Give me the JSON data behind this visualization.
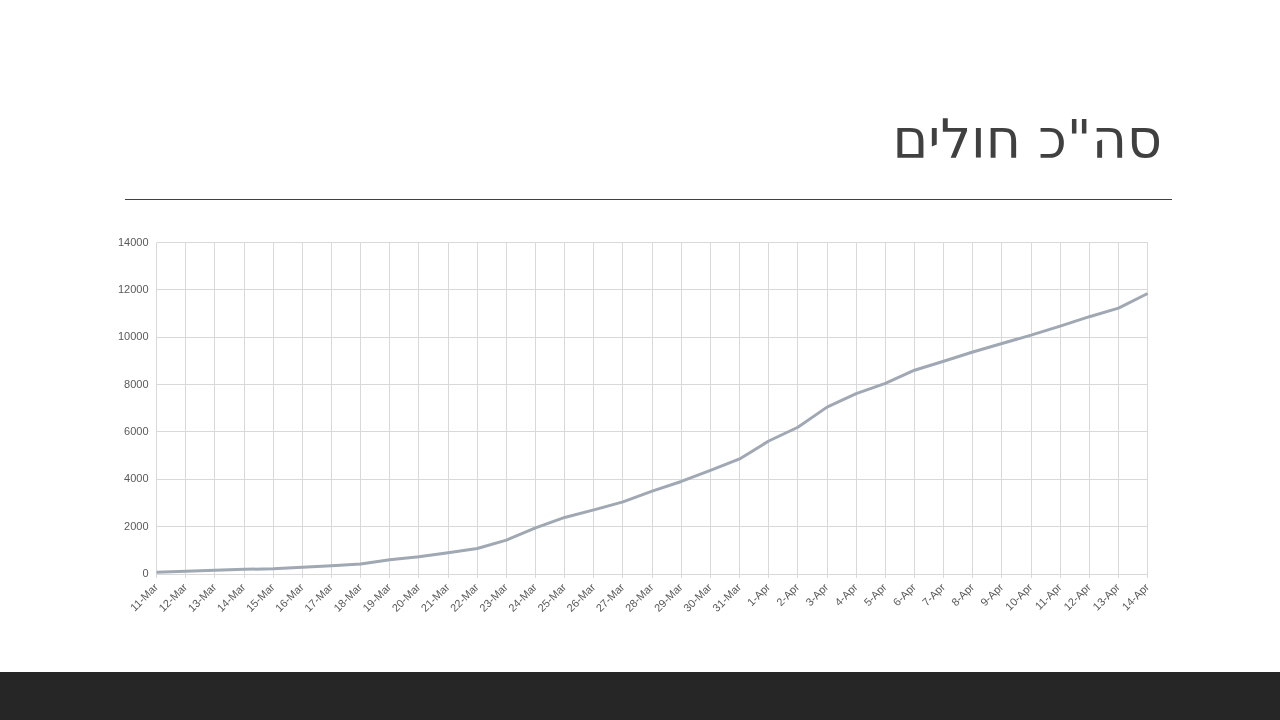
{
  "chart_data": {
    "type": "line",
    "title": "סה\"כ חולים",
    "categories": [
      "11-Mar",
      "12-Mar",
      "13-Mar",
      "14-Mar",
      "15-Mar",
      "16-Mar",
      "17-Mar",
      "18-Mar",
      "19-Mar",
      "20-Mar",
      "21-Mar",
      "22-Mar",
      "23-Mar",
      "24-Mar",
      "25-Mar",
      "26-Mar",
      "27-Mar",
      "28-Mar",
      "29-Mar",
      "30-Mar",
      "31-Mar",
      "1-Apr",
      "2-Apr",
      "3-Apr",
      "4-Apr",
      "5-Apr",
      "6-Apr",
      "7-Apr",
      "8-Apr",
      "9-Apr",
      "10-Apr",
      "11-Apr",
      "12-Apr",
      "13-Apr",
      "14-Apr"
    ],
    "series": [
      {
        "color": "#a0a8b4",
        "values": [
          75,
          120,
          160,
          200,
          220,
          290,
          350,
          420,
          600,
          730,
          900,
          1080,
          1430,
          1950,
          2390,
          2710,
          3050,
          3500,
          3910,
          4380,
          4860,
          5620,
          6200,
          7050,
          7620,
          8050,
          8610,
          8990,
          9380,
          9740,
          10090,
          10470,
          10870,
          11230,
          11850
        ]
      }
    ],
    "ylim": [
      0,
      14000
    ],
    "yticks": [
      0,
      2000,
      4000,
      6000,
      8000,
      10000,
      12000,
      14000
    ],
    "grid": true,
    "legend": false,
    "marker": "none",
    "line_style": "solid"
  }
}
